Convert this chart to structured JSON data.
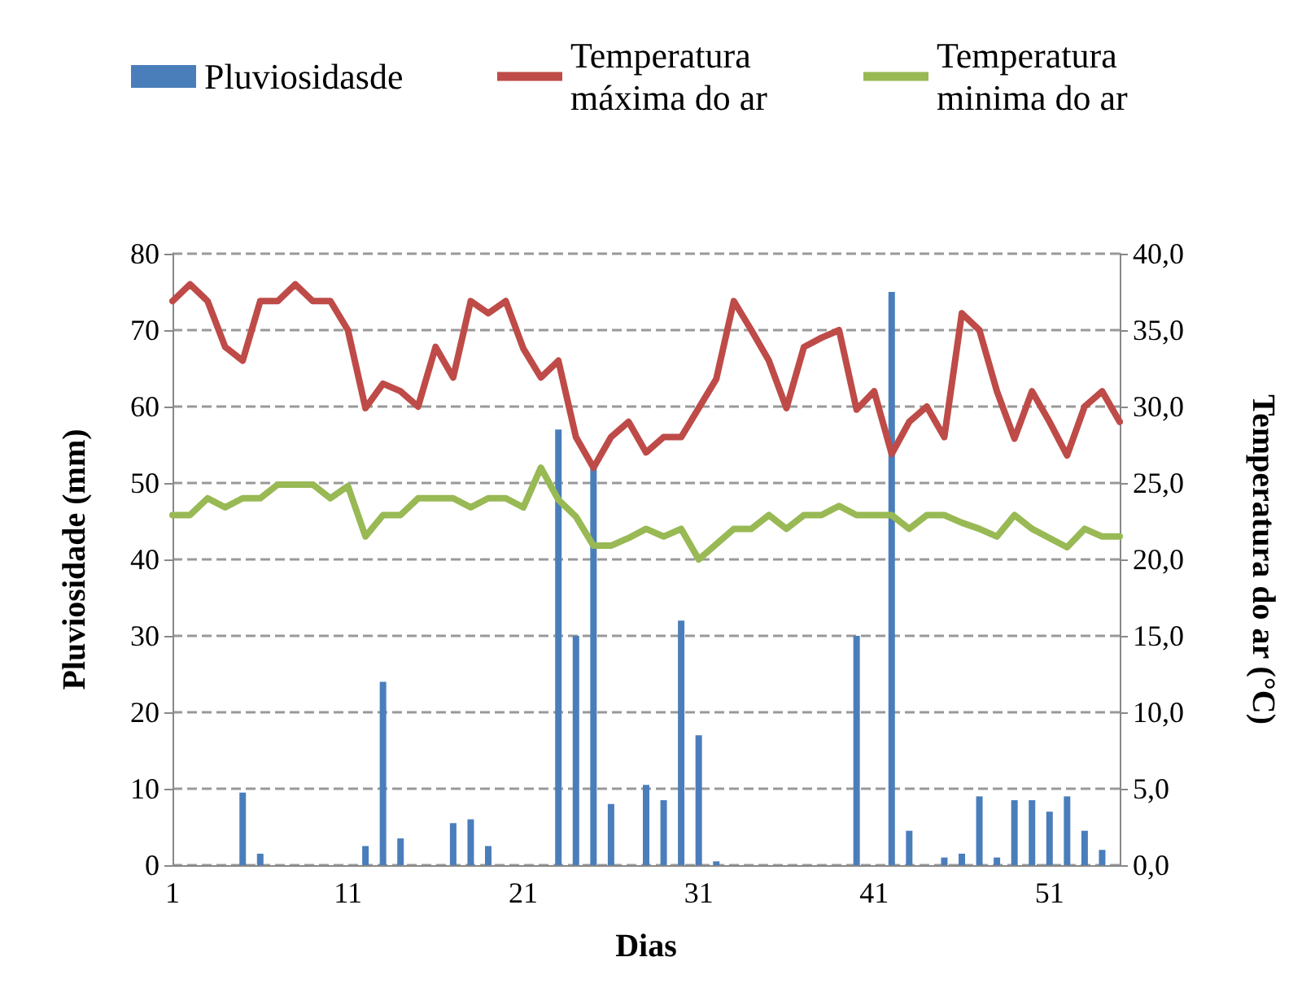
{
  "chart_data": {
    "type": "bar",
    "xlabel": "Dias",
    "ylabel": "Pluviosidade (mm)",
    "y2label": "Temperatura do ar (°C)",
    "categories": [
      "1",
      null,
      null,
      null,
      null,
      null,
      null,
      null,
      null,
      null,
      "11",
      null,
      null,
      null,
      null,
      null,
      null,
      null,
      null,
      null,
      "21",
      null,
      null,
      null,
      null,
      null,
      null,
      null,
      null,
      null,
      "31",
      null,
      null,
      null,
      null,
      null,
      null,
      null,
      null,
      null,
      "41",
      null,
      null,
      null,
      null,
      null,
      null,
      null,
      null,
      null,
      "51",
      null,
      null,
      null,
      null
    ],
    "series": [
      {
        "name": "Pluviosidasde",
        "color": "#4a7ebb",
        "values": [
          0,
          0,
          0,
          0,
          9.5,
          1.5,
          0,
          0,
          0,
          0,
          0,
          2.5,
          24,
          3.5,
          0,
          0,
          5.5,
          6,
          2.5,
          0,
          0,
          0,
          57,
          30,
          52,
          8,
          0,
          10.5,
          8.5,
          32,
          17,
          0.5,
          0,
          0,
          0,
          0,
          0,
          0,
          0,
          30,
          0,
          75,
          4.5,
          0,
          1,
          1.5,
          9,
          1,
          8.5,
          8.5,
          7,
          9,
          4.5,
          2,
          0
        ]
      },
      {
        "name": "Temperatura máxima do ar",
        "type": "line",
        "axis": "y2",
        "color": "#be4b48",
        "values": [
          36.9,
          38,
          36.9,
          33.9,
          33,
          36.9,
          36.9,
          38,
          36.9,
          36.9,
          35,
          29.9,
          31.5,
          31,
          30,
          33.9,
          31.9,
          36.9,
          36.1,
          36.9,
          33.8,
          31.9,
          33,
          28,
          26,
          28,
          29,
          27,
          28,
          28,
          29.9,
          31.8,
          36.9,
          35,
          33,
          29.9,
          33.9,
          34.5,
          35,
          29.8,
          31,
          26.9,
          29,
          30,
          28,
          36.1,
          35,
          31,
          27.9,
          31,
          29,
          26.8,
          30,
          31,
          29
        ]
      },
      {
        "name": "Temperatura minima do ar",
        "type": "line",
        "axis": "y2",
        "color": "#98b954",
        "values": [
          22.9,
          22.9,
          24,
          23.4,
          24,
          24,
          24.9,
          24.9,
          24.9,
          24,
          24.8,
          21.5,
          22.9,
          22.9,
          24,
          24,
          24,
          23.4,
          24,
          24,
          23.4,
          26,
          23.9,
          22.8,
          20.9,
          20.9,
          21.4,
          22,
          21.5,
          22,
          20,
          21,
          22,
          22,
          22.9,
          22,
          22.9,
          22.9,
          23.5,
          22.9,
          22.9,
          22.9,
          22,
          22.9,
          22.9,
          22.4,
          22,
          21.5,
          22.9,
          22,
          21.4,
          20.8,
          22,
          21.5,
          21.5
        ]
      }
    ],
    "ylim": [
      0,
      80
    ],
    "yticks": [
      0,
      10,
      20,
      30,
      40,
      50,
      60,
      70,
      80
    ],
    "y2lim": [
      0,
      40
    ],
    "y2ticks": [
      {
        "value": 0,
        "label": "0,0"
      },
      {
        "value": 5,
        "label": "5,0"
      },
      {
        "value": 10,
        "label": "10,0"
      },
      {
        "value": 15,
        "label": "15,0"
      },
      {
        "value": 20,
        "label": "20,0"
      },
      {
        "value": 25,
        "label": "25,0"
      },
      {
        "value": 30,
        "label": "30,0"
      },
      {
        "value": 35,
        "label": "35,0"
      },
      {
        "value": 40,
        "label": "40,0"
      }
    ],
    "grid": "y",
    "legend": "top",
    "marker": "none",
    "line_style": "solid"
  }
}
